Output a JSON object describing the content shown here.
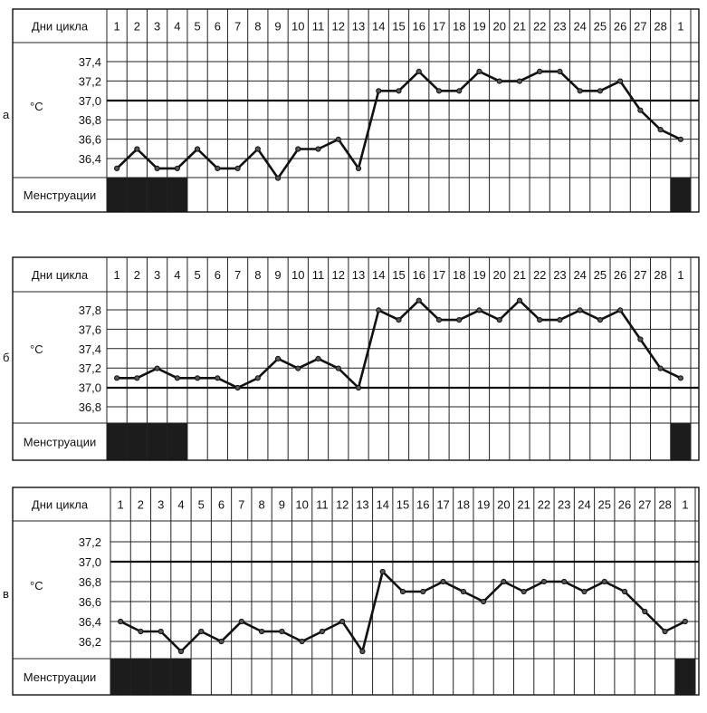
{
  "days": [
    "1",
    "2",
    "3",
    "4",
    "5",
    "6",
    "7",
    "8",
    "9",
    "10",
    "11",
    "12",
    "13",
    "14",
    "15",
    "16",
    "17",
    "18",
    "19",
    "20",
    "21",
    "22",
    "23",
    "24",
    "25",
    "26",
    "27",
    "28",
    "1"
  ],
  "labels": {
    "cycle_days": "Дни цикла",
    "menstruation": "Менструации",
    "unit": "°C"
  },
  "caption": "",
  "chart_data": [
    {
      "type": "line",
      "panel_letter": "а",
      "xlabel": "Дни цикла",
      "ylabel": "°C",
      "yticks": [
        "37,4",
        "37,2",
        "37,0",
        "36,8",
        "36,6",
        "36,4"
      ],
      "ylim": [
        36.2,
        37.5
      ],
      "reference_line": 37.0,
      "categories": [
        "1",
        "2",
        "3",
        "4",
        "5",
        "6",
        "7",
        "8",
        "9",
        "10",
        "11",
        "12",
        "13",
        "14",
        "15",
        "16",
        "17",
        "18",
        "19",
        "20",
        "21",
        "22",
        "23",
        "24",
        "25",
        "26",
        "27",
        "28",
        "1"
      ],
      "values": [
        36.3,
        36.5,
        36.3,
        36.3,
        36.5,
        36.3,
        36.3,
        36.5,
        36.2,
        36.5,
        36.5,
        36.6,
        36.3,
        37.1,
        37.1,
        37.3,
        37.1,
        37.1,
        37.3,
        37.2,
        37.2,
        37.3,
        37.3,
        37.1,
        37.1,
        37.2,
        36.9,
        36.7,
        36.6
      ],
      "menstruation_days": [
        1,
        2,
        3,
        4,
        29
      ],
      "row_label_menstruation": "Менструации"
    },
    {
      "type": "line",
      "panel_letter": "б",
      "xlabel": "Дни цикла",
      "ylabel": "°C",
      "yticks": [
        "37,8",
        "37,6",
        "37,4",
        "37,2",
        "37,0",
        "36,8"
      ],
      "ylim": [
        36.7,
        37.9
      ],
      "reference_line": 37.0,
      "categories": [
        "1",
        "2",
        "3",
        "4",
        "5",
        "6",
        "7",
        "8",
        "9",
        "10",
        "11",
        "12",
        "13",
        "14",
        "15",
        "16",
        "17",
        "18",
        "19",
        "20",
        "21",
        "22",
        "23",
        "24",
        "25",
        "26",
        "27",
        "28",
        "1"
      ],
      "values": [
        37.1,
        37.1,
        37.2,
        37.1,
        37.1,
        37.1,
        37.0,
        37.1,
        37.3,
        37.2,
        37.3,
        37.2,
        37.0,
        37.8,
        37.7,
        37.9,
        37.7,
        37.7,
        37.8,
        37.7,
        37.9,
        37.7,
        37.7,
        37.8,
        37.7,
        37.8,
        37.5,
        37.2,
        37.1
      ],
      "menstruation_days": [
        1,
        2,
        3,
        4,
        29
      ],
      "row_label_menstruation": "Менструации"
    },
    {
      "type": "line",
      "panel_letter": "в",
      "xlabel": "Дни цикла",
      "ylabel": "°C",
      "yticks": [
        "37,2",
        "37,0",
        "36,8",
        "36,6",
        "36,4",
        "36,2"
      ],
      "ylim": [
        36.0,
        37.3
      ],
      "reference_line": 37.0,
      "categories": [
        "1",
        "2",
        "3",
        "4",
        "5",
        "6",
        "7",
        "8",
        "9",
        "10",
        "11",
        "12",
        "13",
        "14",
        "15",
        "16",
        "17",
        "18",
        "19",
        "20",
        "21",
        "22",
        "23",
        "24",
        "25",
        "26",
        "27",
        "28",
        "1"
      ],
      "values": [
        36.4,
        36.3,
        36.3,
        36.1,
        36.3,
        36.2,
        36.4,
        36.3,
        36.3,
        36.2,
        36.3,
        36.4,
        36.1,
        36.9,
        36.7,
        36.7,
        36.8,
        36.7,
        36.6,
        36.8,
        36.7,
        36.8,
        36.8,
        36.7,
        36.8,
        36.7,
        36.5,
        36.3,
        36.4
      ],
      "menstruation_days": [
        1,
        2,
        3,
        4,
        29
      ],
      "row_label_menstruation": "Менструации"
    }
  ]
}
